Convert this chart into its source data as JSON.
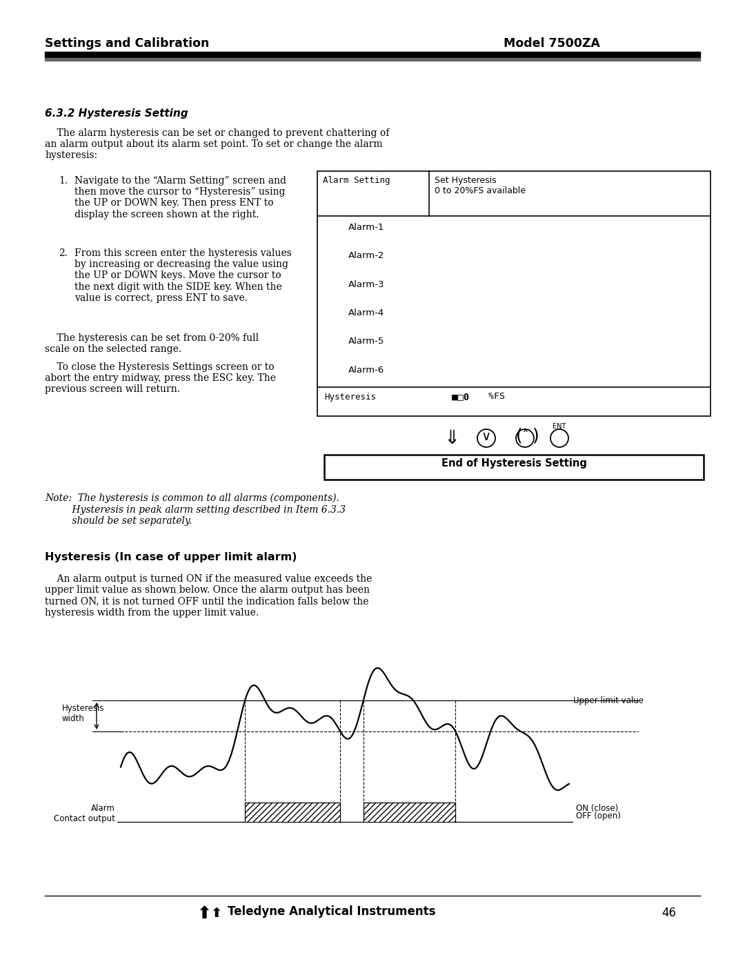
{
  "page_width": 10.8,
  "page_height": 13.97,
  "bg_color": "#ffffff",
  "header_left": "Settings and Calibration",
  "header_right": "Model 7500ZA",
  "section_title": "6.3.2 Hysteresis Setting",
  "body_text1": "    The alarm hysteresis can be set or changed to prevent chattering of\nan alarm output about its alarm set point. To set or change the alarm\nhysteresis:",
  "step1_text": "Navigate to the “Alarm Setting” screen and\nthen move the cursor to “Hysteresis” using\nthe UP or DOWN key. Then press ENT to\ndisplay the screen shown at the right.",
  "step2_text": "From this screen enter the hysteresis values\nby increasing or decreasing the value using\nthe UP or DOWN keys. Move the cursor to\nthe next digit with the SIDE key. When the\nvalue is correct, press ENT to save.",
  "body_text2": "    The hysteresis can be set from 0-20% full\nscale on the selected range.",
  "body_text3": "    To close the Hysteresis Settings screen or to\nabort the entry midway, press the ESC key. The\nprevious screen will return.",
  "note_text": "Note:  The hysteresis is common to all alarms (components).\n         Hysteresis in peak alarm setting described in Item 6.3.3\n         should be set separately.",
  "hysteresis_section_title": "Hysteresis (In case of upper limit alarm)",
  "hysteresis_body": "    An alarm output is turned ON if the measured value exceeds the\nupper limit value as shown below. Once the alarm output has been\nturned ON, it is not turned OFF until the indication falls below the\nhysteresis width from the upper limit value.",
  "footer_company": "Teledyne Analytical Instruments",
  "footer_page": "46",
  "table_alarms": [
    "Alarm-1",
    "Alarm-2",
    "Alarm-3",
    "Alarm-4",
    "Alarm-5",
    "Alarm-6"
  ],
  "end_box_text": "End of Hysteresis Setting",
  "upper_limit_label": "Upper limit value",
  "on_close_label": "ON (close)",
  "off_open_label": "OFF (open)"
}
